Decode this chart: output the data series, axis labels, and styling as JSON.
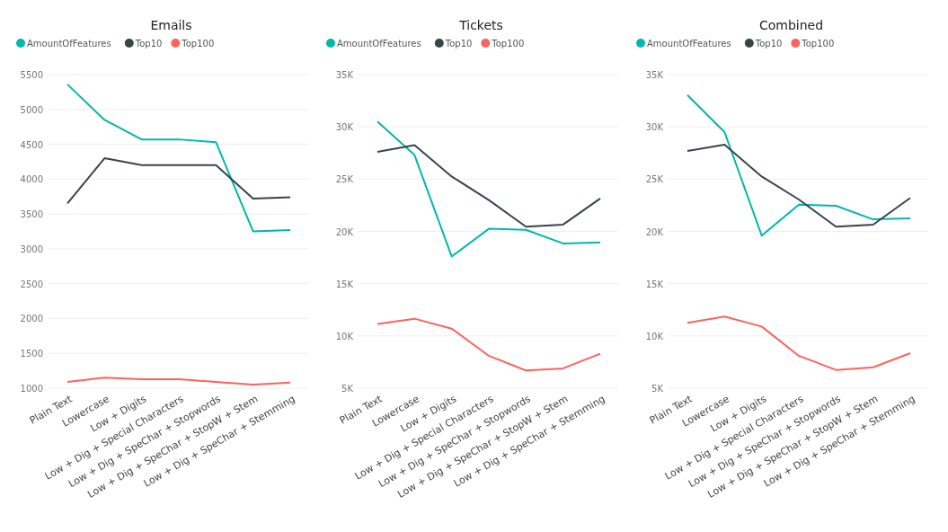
{
  "chart_data": [
    {
      "type": "line",
      "title": "Emails",
      "categories": [
        "Plain Text",
        "Lowercase",
        "Low + Digits",
        "Low + Dig + Special Characters",
        "Low + Dig + SpeChar + Stopwords",
        "Low + Dig + SpeChar + StopW + Stem",
        "Low + Dig + SpeChar + Stemming"
      ],
      "series": [
        {
          "name": "AmountOfFeatures",
          "color": "#01b8aa",
          "values": [
            5360,
            4850,
            4570,
            4570,
            4530,
            3250,
            3270
          ]
        },
        {
          "name": "Top10",
          "color": "#374649",
          "values": [
            3650,
            4300,
            4200,
            4200,
            4200,
            3720,
            3740
          ]
        },
        {
          "name": "Top100",
          "color": "#fd625e",
          "values": [
            1090,
            1150,
            1130,
            1130,
            1090,
            1050,
            1080
          ]
        }
      ],
      "ylim": [
        1000,
        5500
      ],
      "yticks": [
        1000,
        1500,
        2000,
        2500,
        3000,
        3500,
        4000,
        4500,
        5000,
        5500
      ],
      "grid": "y",
      "legend": "top left",
      "marker": "none"
    },
    {
      "type": "line",
      "title": "Tickets",
      "categories": [
        "Plain Text",
        "Lowercase",
        "Low + Digits",
        "Low + Dig + Special Characters",
        "Low + Dig + SpeChar + Stopwords",
        "Low + Dig + SpeChar + StopW + Stem",
        "Low + Dig + SpeChar + Stemming"
      ],
      "series": [
        {
          "name": "AmountOfFeatures",
          "color": "#01b8aa",
          "values": [
            30500,
            27300,
            17600,
            20250,
            20150,
            18850,
            18950
          ]
        },
        {
          "name": "Top10",
          "color": "#374649",
          "values": [
            27600,
            28250,
            25250,
            23000,
            20450,
            20650,
            23150
          ]
        },
        {
          "name": "Top100",
          "color": "#fd625e",
          "values": [
            11150,
            11650,
            10700,
            8100,
            6700,
            6900,
            8300
          ]
        }
      ],
      "ylim": [
        5000,
        35000
      ],
      "yticks": [
        {
          "value": 5000,
          "label": "5K"
        },
        {
          "value": 10000,
          "label": "10K"
        },
        {
          "value": 15000,
          "label": "15K"
        },
        {
          "value": 20000,
          "label": "20K"
        },
        {
          "value": 25000,
          "label": "25K"
        },
        {
          "value": 30000,
          "label": "30K"
        },
        {
          "value": 35000,
          "label": "35K"
        }
      ],
      "grid": "y",
      "legend": "top left",
      "marker": "none"
    },
    {
      "type": "line",
      "title": "Combined",
      "categories": [
        "Plain Text",
        "Lowercase",
        "Low + Digits",
        "Low + Dig + Special Characters",
        "Low + Dig + SpeChar + Stopwords",
        "Low + Dig + SpeChar + StopW + Stem",
        "Low + Dig + SpeChar + Stemming"
      ],
      "series": [
        {
          "name": "AmountOfFeatures",
          "color": "#01b8aa",
          "values": [
            33050,
            29500,
            19600,
            22550,
            22450,
            21150,
            21250
          ]
        },
        {
          "name": "Top10",
          "color": "#374649",
          "values": [
            27700,
            28300,
            25250,
            23050,
            20450,
            20650,
            23200
          ]
        },
        {
          "name": "Top100",
          "color": "#fd625e",
          "values": [
            11250,
            11850,
            10900,
            8100,
            6750,
            7000,
            8350
          ]
        }
      ],
      "ylim": [
        5000,
        35000
      ],
      "yticks": [
        {
          "value": 5000,
          "label": "5K"
        },
        {
          "value": 10000,
          "label": "10K"
        },
        {
          "value": 15000,
          "label": "15K"
        },
        {
          "value": 20000,
          "label": "20K"
        },
        {
          "value": 25000,
          "label": "25K"
        },
        {
          "value": 30000,
          "label": "30K"
        },
        {
          "value": 35000,
          "label": "35K"
        }
      ],
      "grid": "y",
      "legend": "top left",
      "marker": "none"
    }
  ]
}
